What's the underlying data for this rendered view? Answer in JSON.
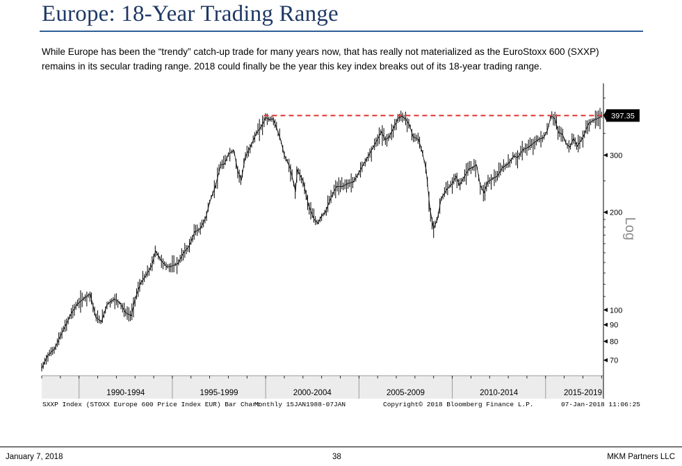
{
  "header": {
    "title": "Europe: 18-Year Trading Range",
    "description_line1": "While Europe has been the “trendy” catch-up trade for many years now, that has really not materialized as the EuroStoxx 600 (SXXP)",
    "description_line2": "remains in its secular trading range. 2018 could finally be the year this key index breaks out of its 18-year trading range."
  },
  "chart_data": {
    "type": "line",
    "scale": "log",
    "scale_label": "Log",
    "ylim": [
      63,
      480
    ],
    "xlim": [
      1988.0,
      2018.1
    ],
    "yticks": [
      70,
      80,
      90,
      100,
      200,
      300
    ],
    "x_labels": [
      {
        "label": "1990-1994",
        "at": 1992.5
      },
      {
        "label": "1995-1999",
        "at": 1997.5
      },
      {
        "label": "2000-2004",
        "at": 2002.5
      },
      {
        "label": "2005-2009",
        "at": 2007.5
      },
      {
        "label": "2010-2014",
        "at": 2012.5
      },
      {
        "label": "2015-2019",
        "at": 2017.0
      }
    ],
    "x_separators": [
      1990,
      1995,
      2000,
      2005,
      2010,
      2015
    ],
    "resistance_level": 397.35,
    "resistance_start": 1999.9,
    "last_value_label": "397.35",
    "series": [
      {
        "name": "SXXP Index",
        "x": [
          1988.0,
          1988.3,
          1988.7,
          1989.0,
          1989.3,
          1989.6,
          1989.9,
          1990.3,
          1990.6,
          1990.9,
          1991.2,
          1991.5,
          1991.9,
          1992.2,
          1992.5,
          1992.8,
          1993.0,
          1993.3,
          1993.6,
          1993.9,
          1994.1,
          1994.4,
          1994.7,
          1994.9,
          1995.3,
          1995.6,
          1995.9,
          1996.2,
          1996.5,
          1996.8,
          1997.0,
          1997.3,
          1997.6,
          1997.8,
          1998.0,
          1998.3,
          1998.5,
          1998.7,
          1998.9,
          1999.2,
          1999.5,
          1999.8,
          2000.0,
          2000.2,
          2000.4,
          2000.6,
          2000.8,
          2001.0,
          2001.3,
          2001.6,
          2001.7,
          2002.0,
          2002.3,
          2002.6,
          2002.8,
          2003.0,
          2003.2,
          2003.5,
          2003.8,
          2004.1,
          2004.4,
          2004.7,
          2005.0,
          2005.3,
          2005.6,
          2005.9,
          2006.2,
          2006.4,
          2006.6,
          2006.9,
          2007.1,
          2007.3,
          2007.5,
          2007.7,
          2007.9,
          2008.2,
          2008.4,
          2008.6,
          2008.8,
          2009.0,
          2009.2,
          2009.4,
          2009.7,
          2010.0,
          2010.2,
          2010.4,
          2010.6,
          2010.9,
          2011.1,
          2011.3,
          2011.5,
          2011.7,
          2011.9,
          2012.2,
          2012.4,
          2012.7,
          2013.0,
          2013.3,
          2013.5,
          2013.8,
          2014.1,
          2014.4,
          2014.6,
          2014.9,
          2015.1,
          2015.3,
          2015.5,
          2015.7,
          2015.9,
          2016.1,
          2016.3,
          2016.5,
          2016.7,
          2017.0,
          2017.3,
          2017.6,
          2017.9,
          2018.0
        ],
        "values": [
          66,
          72,
          76,
          83,
          90,
          98,
          104,
          109,
          112,
          95,
          92,
          104,
          108,
          105,
          98,
          96,
          108,
          121,
          128,
          137,
          152,
          142,
          136,
          136,
          139,
          150,
          157,
          174,
          178,
          193,
          215,
          240,
          280,
          282,
          302,
          310,
          268,
          252,
          295,
          320,
          350,
          370,
          392,
          386,
          388,
          362,
          335,
          300,
          275,
          232,
          270,
          250,
          210,
          190,
          185,
          195,
          200,
          222,
          240,
          240,
          245,
          248,
          265,
          285,
          305,
          328,
          354,
          335,
          340,
          368,
          390,
          395,
          388,
          372,
          342,
          335,
          305,
          270,
          205,
          178,
          190,
          220,
          235,
          245,
          258,
          242,
          255,
          272,
          275,
          280,
          242,
          230,
          248,
          255,
          258,
          275,
          282,
          298,
          295,
          312,
          318,
          328,
          335,
          340,
          358,
          398,
          388,
          352,
          348,
          325,
          318,
          338,
          320,
          340,
          375,
          385,
          392,
          397.35
        ]
      }
    ],
    "source_left": "SXXP Index (STOXX Europe 600 Price Index EUR) Bar Chart",
    "source_period": "Monthly 15JAN1988-07JAN",
    "copyright": "Copyright© 2018 Bloomberg Finance L.P.",
    "timestamp": "07-Jan-2018 11:06:25"
  },
  "colors": {
    "title": "#1f3864",
    "rule": "#2e5f96",
    "resistance": "#e0302c",
    "price": "#000000",
    "axis_band": "#ececec"
  },
  "footer": {
    "date": "January 7, 2018",
    "page": "38",
    "firm": "MKM Partners LLC"
  }
}
